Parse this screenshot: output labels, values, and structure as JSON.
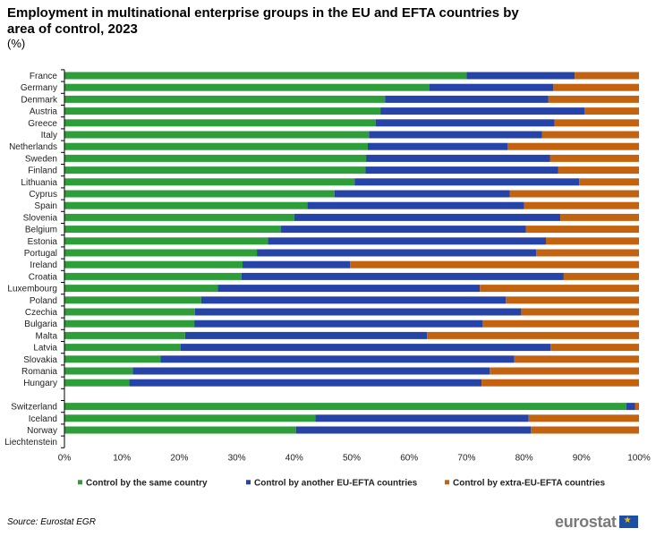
{
  "title": "Employment in multinational enterprise groups in the EU and EFTA countries by area of control, 2023",
  "subtitle": "(%)",
  "source": "Source: Eurostat EGR",
  "logo_text": "eurostat",
  "chart_data": {
    "type": "bar",
    "orientation": "horizontal",
    "stacked": true,
    "categories": [
      "France",
      "Germany",
      "Denmark",
      "Austria",
      "Greece",
      "Italy",
      "Netherlands",
      "Sweden",
      "Finland",
      "Lithuania",
      "Cyprus",
      "Spain",
      "Slovenia",
      "Belgium",
      "Estonia",
      "Portugal",
      "Ireland",
      "Croatia",
      "Luxembourg",
      "Poland",
      "Czechia",
      "Bulgaria",
      "Malta",
      "Latvia",
      "Slovakia",
      "Romania",
      "Hungary",
      "",
      "Switzerland",
      "Iceland",
      "Norway",
      "Liechtenstein"
    ],
    "series": [
      {
        "name": "Control by the same country",
        "color": "#2e9e3a",
        "values": [
          70,
          63.5,
          55.8,
          55,
          54.2,
          53,
          52.8,
          52.5,
          52.4,
          50.5,
          47,
          42.3,
          40,
          37.7,
          35.4,
          33.5,
          31,
          30.8,
          26.7,
          23.8,
          22.7,
          22.6,
          21,
          20.2,
          16.7,
          11.9,
          11.3,
          null,
          97.8,
          43.7,
          40.3,
          null
        ]
      },
      {
        "name": "Control by another EU-EFTA countries",
        "color": "#2643a8",
        "values": [
          18.8,
          21.6,
          28.4,
          35.5,
          31.1,
          30.1,
          24.3,
          32,
          33.5,
          39.1,
          30.5,
          37.7,
          46.3,
          42.6,
          48.4,
          48.6,
          18.7,
          56.1,
          45.6,
          53,
          56.8,
          50.2,
          42.1,
          64.4,
          61.6,
          62.1,
          61.3,
          null,
          1.5,
          37.1,
          40.9,
          null
        ]
      },
      {
        "name": "Control by extra-EU-EFTA countries",
        "color": "#c4630f",
        "values": [
          11.2,
          14.9,
          15.8,
          9.5,
          14.7,
          16.9,
          22.9,
          15.5,
          14.1,
          10.4,
          22.5,
          20,
          13.7,
          19.7,
          16.2,
          17.9,
          50.3,
          13.1,
          27.7,
          23.2,
          20.5,
          27.2,
          36.9,
          15.4,
          21.7,
          26,
          27.4,
          null,
          0.7,
          19.2,
          18.8,
          null
        ]
      }
    ],
    "xlim": [
      0,
      100
    ],
    "xticks": [
      "0%",
      "10%",
      "20%",
      "30%",
      "40%",
      "50%",
      "60%",
      "70%",
      "80%",
      "90%",
      "100%"
    ],
    "legend_position": "bottom",
    "grid": false
  }
}
